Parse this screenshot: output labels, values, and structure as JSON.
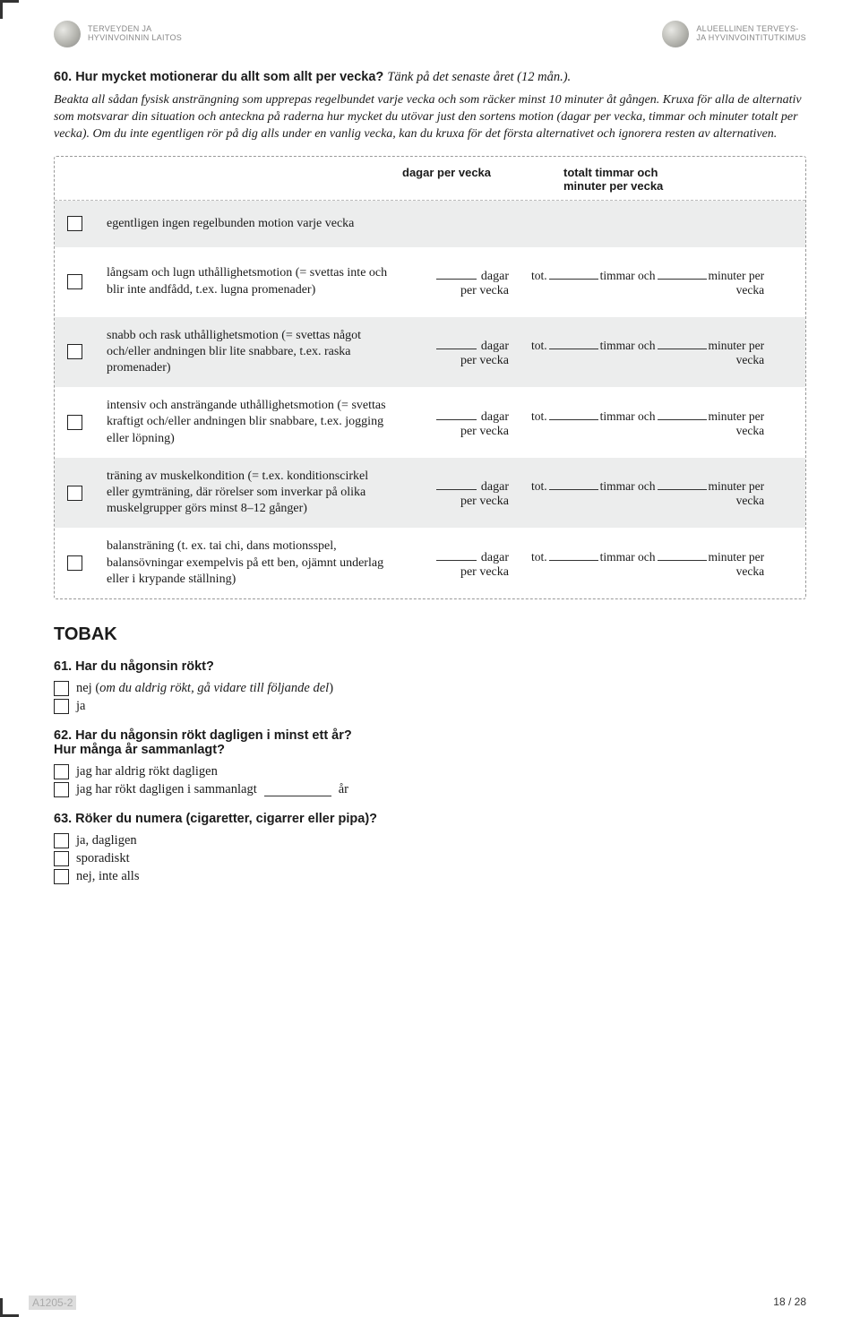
{
  "header": {
    "left_line1": "TERVEYDEN JA",
    "left_line2": "HYVINVOINNIN LAITOS",
    "right_line1": "ALUEELLINEN TERVEYS-",
    "right_line2": "JA HYVINVOINTITUTKIMUS"
  },
  "q60": {
    "num": "60.",
    "title": "Hur mycket motionerar du allt som allt per vecka?",
    "title_italic": "Tänk på det senaste året (12 mån.).",
    "instr": "Beakta all sådan fysisk ansträngning som upprepas regelbundet varje vecka och som räcker minst 10 minuter åt gången. Kruxa för alla de alternativ som motsvarar din situation och anteckna på raderna hur mycket du utövar just den sortens motion (dagar per vecka, timmar och minuter totalt per vecka). Om du inte egentligen rör på dig alls under en vanlig vecka, kan du kruxa för det första alternativet och ignorera resten av alternativen.",
    "head_c3": "dagar per vecka",
    "head_c4a": "totalt timmar och",
    "head_c4b": "minuter per vecka",
    "lbl_dagar": "dagar",
    "lbl_per_vecka": "per vecka",
    "lbl_tot": "tot.",
    "lbl_timmar_och": "timmar och",
    "lbl_minuter_per": "minuter per",
    "lbl_vecka": "vecka",
    "rows": [
      {
        "text": "egentligen ingen regelbunden motion varje vecka",
        "blank_only": true,
        "shaded": true
      },
      {
        "text": "långsam och lugn uthållighetsmotion (= svettas inte och blir inte andfådd, t.ex. lugna promenader)",
        "shaded": false
      },
      {
        "text": "snabb och rask uthållighetsmotion (= svettas något och/eller andningen blir lite snabbare, t.ex. raska promenader)",
        "shaded": true
      },
      {
        "text": "intensiv och ansträngande uthållighetsmotion (= svettas kraftigt och/eller andningen blir snabbare, t.ex. jogging eller löpning)",
        "shaded": false
      },
      {
        "text": "träning av muskelkondition (= t.ex. konditionscirkel eller gymträning, där rörelser som inverkar på olika muskelgrupper görs minst 8–12 gånger)",
        "shaded": true
      },
      {
        "text": "balansträning (t. ex. tai chi, dans motionsspel, balansövningar exempelvis på ett ben, ojämnt underlag eller i krypande ställning)",
        "shaded": false
      }
    ]
  },
  "section_tobacco": "TOBAK",
  "q61": {
    "title": "61. Har du någonsin rökt?",
    "opt1_pre": "nej (",
    "opt1_italic": "om du aldrig rökt, gå vidare till följande del",
    "opt1_post": ")",
    "opt2": "ja"
  },
  "q62": {
    "title_a": "62. Har du någonsin rökt dagligen i minst ett år?",
    "title_b": "Hur många år sammanlagt?",
    "opt1": "jag har aldrig rökt dagligen",
    "opt2_pre": "jag har rökt dagligen i sammanlagt",
    "opt2_post": "år"
  },
  "q63": {
    "title": "63. Röker du numera (cigaretter, cigarrer eller pipa)?",
    "opt1": "ja, dagligen",
    "opt2": "sporadiskt",
    "opt3": "nej, inte alls"
  },
  "footer": {
    "left": "A1205-2",
    "right": "18 / 28"
  }
}
